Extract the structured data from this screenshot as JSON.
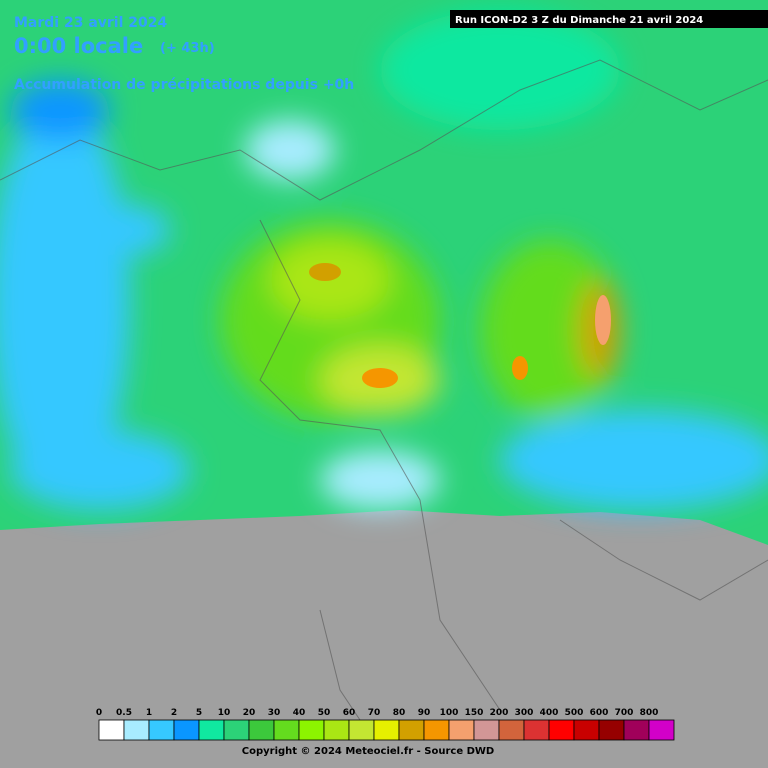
{
  "header": {
    "date": "Mardi 23 avril 2024",
    "time": "0:00 locale",
    "lead": "(+ 43h)",
    "subtitle": "Accumulation de précipitations depuis +0h",
    "run": "Run ICON-D2 3 Z du Dimanche 21 avril 2024"
  },
  "legend": {
    "items": [
      {
        "label": "0",
        "color": "#ffffff"
      },
      {
        "label": "0.5",
        "color": "#a8ecff"
      },
      {
        "label": "1",
        "color": "#36c8ff"
      },
      {
        "label": "2",
        "color": "#0a96ff"
      },
      {
        "label": "5",
        "color": "#10e8a0"
      },
      {
        "label": "10",
        "color": "#2cd278"
      },
      {
        "label": "20",
        "color": "#3cc83c"
      },
      {
        "label": "30",
        "color": "#64dc1e"
      },
      {
        "label": "40",
        "color": "#8cf500"
      },
      {
        "label": "50",
        "color": "#aae614"
      },
      {
        "label": "60",
        "color": "#c3e632"
      },
      {
        "label": "70",
        "color": "#e6f000"
      },
      {
        "label": "80",
        "color": "#d2a000"
      },
      {
        "label": "90",
        "color": "#f59600"
      },
      {
        "label": "100",
        "color": "#f5a06e"
      },
      {
        "label": "150",
        "color": "#d29696"
      },
      {
        "label": "200",
        "color": "#d2643c"
      },
      {
        "label": "300",
        "color": "#dc3232"
      },
      {
        "label": "400",
        "color": "#ff0000"
      },
      {
        "label": "500",
        "color": "#c80000"
      },
      {
        "label": "600",
        "color": "#960000"
      },
      {
        "label": "700",
        "color": "#a0005a"
      },
      {
        "label": "800",
        "color": "#d200c8"
      }
    ]
  },
  "footer": {
    "copyright": "Copyright © 2024 Meteociel.fr - Source DWD"
  }
}
